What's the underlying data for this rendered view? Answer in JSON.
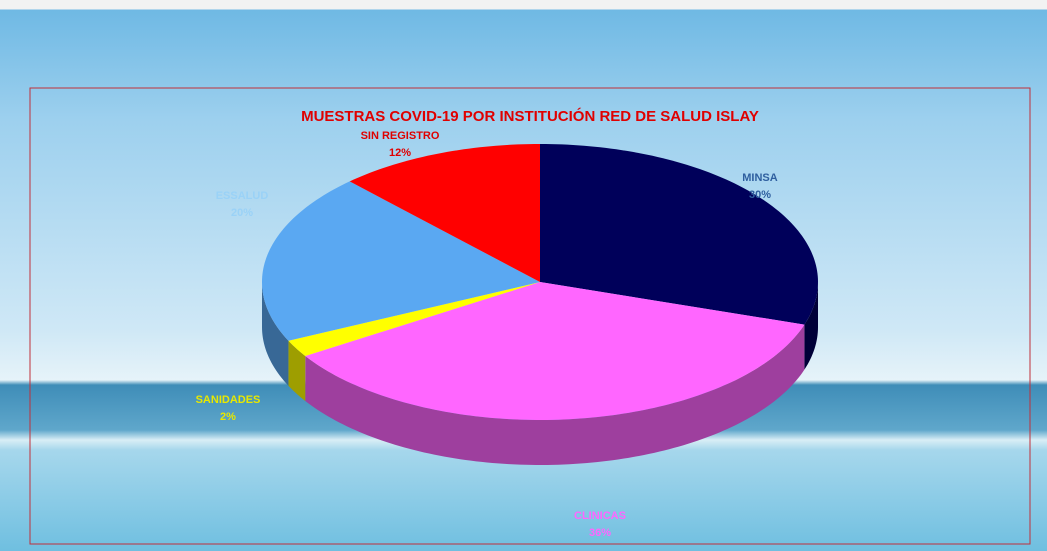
{
  "chart_data": {
    "type": "pie3d",
    "title": "MUESTRAS COVID-19 POR INSTITUCIÓN RED DE SALUD ISLAY",
    "categories": [
      "MINSA",
      "CLINICAS",
      "SANIDADES",
      "ESSALUD",
      "SIN REGISTRO"
    ],
    "values": [
      30,
      36,
      2,
      20,
      12
    ],
    "value_labels": [
      "30%",
      "36%",
      "2%",
      "20%",
      "12%"
    ],
    "colors": [
      "#00005a",
      "#ff66ff",
      "#ffff00",
      "#5aa8f2",
      "#ff0000"
    ],
    "label_colors": [
      "#2f5f9f",
      "#ff66ff",
      "#e8e800",
      "#9ad2f7",
      "#e00000"
    ]
  }
}
